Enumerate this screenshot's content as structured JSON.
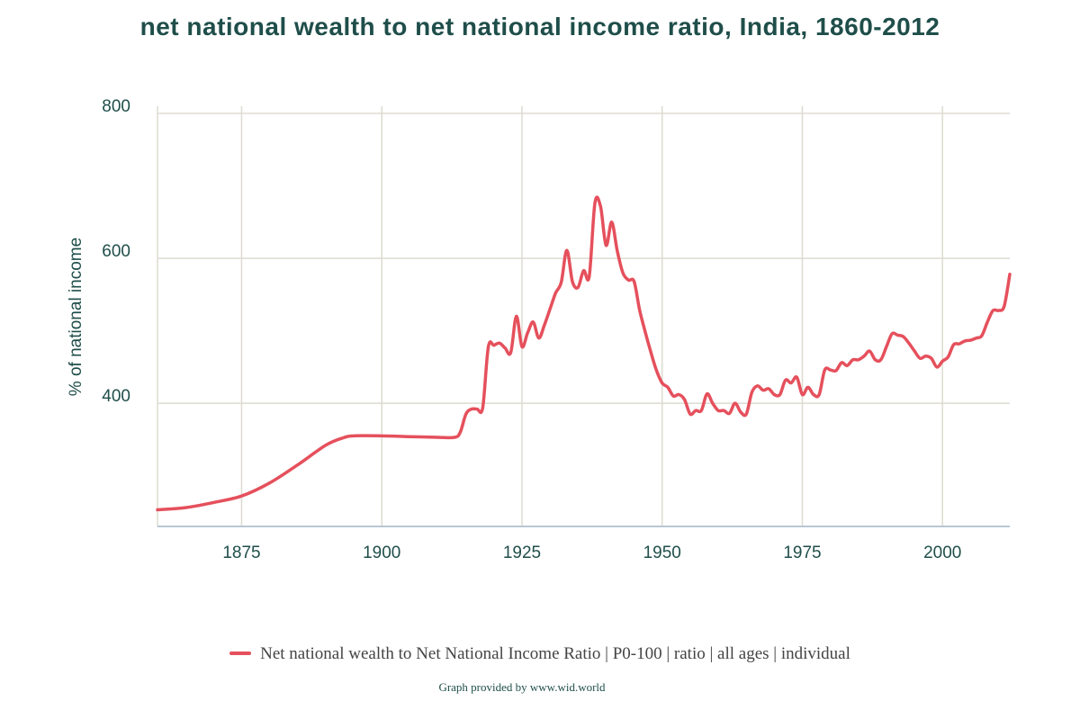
{
  "chart_data": {
    "type": "line",
    "title": "net national wealth to net national income ratio, India, 1860-2012",
    "ylabel": "% of national income",
    "xlabel": "",
    "xlim": [
      1860,
      2012
    ],
    "ylim": [
      230,
      810
    ],
    "x_ticks": [
      1875,
      1900,
      1925,
      1950,
      1975,
      2000
    ],
    "y_ticks": [
      400,
      600,
      800
    ],
    "grid": true,
    "legend_position": "bottom",
    "colors": {
      "series": "#e5505c",
      "grid": "#dddbd0",
      "text": "#1f4e4a"
    },
    "series": [
      {
        "name": "Net national wealth to Net National Income Ratio | P0-100 | ratio | all ages | individual",
        "points": [
          [
            1860,
            253
          ],
          [
            1865,
            256
          ],
          [
            1870,
            263
          ],
          [
            1875,
            272
          ],
          [
            1880,
            290
          ],
          [
            1885,
            315
          ],
          [
            1890,
            342
          ],
          [
            1893,
            352
          ],
          [
            1895,
            355
          ],
          [
            1900,
            355
          ],
          [
            1905,
            354
          ],
          [
            1910,
            353
          ],
          [
            1913,
            353
          ],
          [
            1914,
            360
          ],
          [
            1915,
            385
          ],
          [
            1916,
            392
          ],
          [
            1917,
            392
          ],
          [
            1918,
            394
          ],
          [
            1919,
            478
          ],
          [
            1920,
            480
          ],
          [
            1921,
            483
          ],
          [
            1922,
            476
          ],
          [
            1923,
            470
          ],
          [
            1924,
            520
          ],
          [
            1925,
            478
          ],
          [
            1926,
            497
          ],
          [
            1927,
            512
          ],
          [
            1928,
            490
          ],
          [
            1929,
            508
          ],
          [
            1930,
            530
          ],
          [
            1931,
            552
          ],
          [
            1932,
            567
          ],
          [
            1933,
            611
          ],
          [
            1934,
            568
          ],
          [
            1935,
            560
          ],
          [
            1936,
            583
          ],
          [
            1937,
            575
          ],
          [
            1938,
            676
          ],
          [
            1939,
            672
          ],
          [
            1940,
            618
          ],
          [
            1941,
            650
          ],
          [
            1942,
            610
          ],
          [
            1943,
            580
          ],
          [
            1944,
            570
          ],
          [
            1945,
            568
          ],
          [
            1946,
            528
          ],
          [
            1947,
            498
          ],
          [
            1948,
            470
          ],
          [
            1949,
            445
          ],
          [
            1950,
            428
          ],
          [
            1951,
            422
          ],
          [
            1952,
            410
          ],
          [
            1953,
            412
          ],
          [
            1954,
            405
          ],
          [
            1955,
            385
          ],
          [
            1956,
            390
          ],
          [
            1957,
            390
          ],
          [
            1958,
            413
          ],
          [
            1959,
            400
          ],
          [
            1960,
            390
          ],
          [
            1961,
            390
          ],
          [
            1962,
            386
          ],
          [
            1963,
            400
          ],
          [
            1964,
            388
          ],
          [
            1965,
            385
          ],
          [
            1966,
            415
          ],
          [
            1967,
            424
          ],
          [
            1968,
            418
          ],
          [
            1969,
            420
          ],
          [
            1970,
            412
          ],
          [
            1971,
            412
          ],
          [
            1972,
            432
          ],
          [
            1973,
            428
          ],
          [
            1974,
            436
          ],
          [
            1975,
            412
          ],
          [
            1976,
            422
          ],
          [
            1977,
            412
          ],
          [
            1978,
            412
          ],
          [
            1979,
            446
          ],
          [
            1980,
            446
          ],
          [
            1981,
            445
          ],
          [
            1982,
            456
          ],
          [
            1983,
            452
          ],
          [
            1984,
            460
          ],
          [
            1985,
            460
          ],
          [
            1986,
            465
          ],
          [
            1987,
            472
          ],
          [
            1988,
            460
          ],
          [
            1989,
            460
          ],
          [
            1990,
            478
          ],
          [
            1991,
            496
          ],
          [
            1992,
            494
          ],
          [
            1993,
            492
          ],
          [
            1994,
            483
          ],
          [
            1995,
            472
          ],
          [
            1996,
            462
          ],
          [
            1997,
            465
          ],
          [
            1998,
            462
          ],
          [
            1999,
            450
          ],
          [
            2000,
            458
          ],
          [
            2001,
            464
          ],
          [
            2002,
            481
          ],
          [
            2003,
            482
          ],
          [
            2004,
            486
          ],
          [
            2005,
            487
          ],
          [
            2006,
            490
          ],
          [
            2007,
            493
          ],
          [
            2008,
            512
          ],
          [
            2009,
            528
          ],
          [
            2010,
            528
          ],
          [
            2011,
            534
          ],
          [
            2012,
            578
          ]
        ]
      }
    ]
  },
  "credit": "Graph provided by www.wid.world"
}
